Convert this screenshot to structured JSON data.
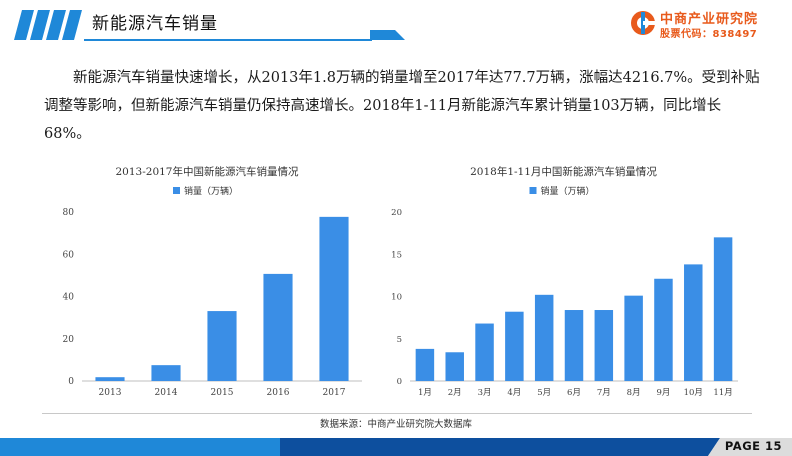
{
  "page": {
    "title": "新能源汽车销量",
    "page_label": "PAGE 15"
  },
  "logo": {
    "name": "中商产业研究院",
    "code": "股票代码：838497"
  },
  "body_text": "新能源汽车销量快速增长，从2013年1.8万辆的销量增至2017年达77.7万辆，涨幅达4216.7%。受到补贴调整等影响，但新能源汽车销量仍保持高速增长。2018年1-11月新能源汽车累计销量103万辆，同比增长68%。",
  "source": "数据来源：中商产业研究院大数据库",
  "colors": {
    "bar": "#3a8ee6",
    "accent_blue": "#1f88d8",
    "dark_blue": "#0d4f9e",
    "brand_orange": "#e85a1c"
  },
  "chart_data": [
    {
      "type": "bar",
      "title": "2013-2017年中国新能源汽车销量情况",
      "categories": [
        "2013",
        "2014",
        "2015",
        "2016",
        "2017"
      ],
      "series": [
        {
          "name": "销量（万辆）",
          "values": [
            1.8,
            7.5,
            33.1,
            50.7,
            77.7
          ]
        }
      ],
      "yticks": [
        0,
        20,
        40,
        60,
        80
      ],
      "ylim": [
        0,
        80
      ],
      "legend": "top-center",
      "grid": false
    },
    {
      "type": "bar",
      "title": "2018年1-11月中国新能源汽车销量情况",
      "categories": [
        "1月",
        "2月",
        "3月",
        "4月",
        "5月",
        "6月",
        "7月",
        "8月",
        "9月",
        "10月",
        "11月"
      ],
      "series": [
        {
          "name": "销量（万辆）",
          "values": [
            3.8,
            3.4,
            6.8,
            8.2,
            10.2,
            8.4,
            8.4,
            10.1,
            12.1,
            13.8,
            17.0
          ]
        }
      ],
      "yticks": [
        0,
        5,
        10,
        15,
        20
      ],
      "ylim": [
        0,
        20
      ],
      "legend": "top-center",
      "grid": false
    }
  ]
}
